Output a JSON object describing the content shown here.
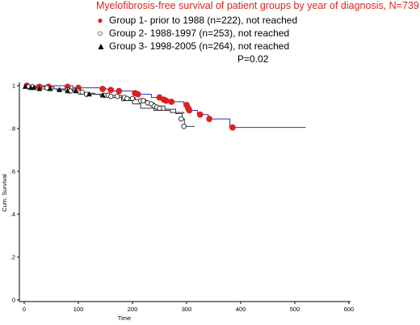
{
  "chart_data": {
    "type": "line",
    "title": "Myelofibrosis-free survival of patient groups by year of diagnosis, N=739",
    "xlabel": "Time",
    "ylabel": "Cum. Survival",
    "xlim": [
      0,
      600
    ],
    "ylim": [
      0,
      1
    ],
    "x_ticks": [
      "0",
      "100",
      "200",
      "300",
      "400",
      "500",
      "600"
    ],
    "y_ticks": [
      "0",
      ".2",
      ".4",
      ".6",
      ".8",
      "1"
    ],
    "legend": [
      {
        "marker": "filled-circle",
        "label": "Group 1- prior to 1988 (n=222), not reached"
      },
      {
        "marker": "open-circle",
        "label": "Group 2- 1988-1997 (n=253), not reached"
      },
      {
        "marker": "triangle",
        "label": "Group 3- 1998-2005 (n=264),  not reached"
      }
    ],
    "annotation": "P=0.02",
    "colors": {
      "title": "#d9261c",
      "group1_line": "#2a2ad4",
      "group1_marker": "#e0201c",
      "group2_line": "#333333",
      "group3_line": "#333333"
    },
    "series": [
      {
        "name": "Group 1- prior to 1988 (n=222), not reached",
        "line_color": "#2a2ad4",
        "marker": "filled-circle",
        "steps": [
          [
            0,
            1.0
          ],
          [
            90,
            0.99
          ],
          [
            140,
            0.985
          ],
          [
            165,
            0.975
          ],
          [
            200,
            0.96
          ],
          [
            235,
            0.945
          ],
          [
            250,
            0.935
          ],
          [
            270,
            0.925
          ],
          [
            295,
            0.915
          ],
          [
            300,
            0.895
          ],
          [
            302,
            0.885
          ],
          [
            320,
            0.865
          ],
          [
            340,
            0.845
          ],
          [
            380,
            0.805
          ],
          [
            520,
            0.805
          ]
        ],
        "censors": [
          [
            5,
            1.0
          ],
          [
            28,
            0.995
          ],
          [
            45,
            0.995
          ],
          [
            80,
            0.995
          ],
          [
            100,
            0.99
          ],
          [
            145,
            0.985
          ],
          [
            160,
            0.98
          ],
          [
            175,
            0.975
          ],
          [
            205,
            0.965
          ],
          [
            210,
            0.96
          ],
          [
            250,
            0.945
          ],
          [
            258,
            0.935
          ],
          [
            262,
            0.93
          ],
          [
            272,
            0.925
          ],
          [
            300,
            0.91
          ],
          [
            303,
            0.895
          ],
          [
            305,
            0.885
          ],
          [
            325,
            0.865
          ],
          [
            342,
            0.845
          ],
          [
            385,
            0.805
          ]
        ]
      },
      {
        "name": "Group 2- 1988-1997 (n=253), not reached",
        "line_color": "#333333",
        "marker": "open-circle",
        "steps": [
          [
            0,
            0.995
          ],
          [
            55,
            0.985
          ],
          [
            95,
            0.975
          ],
          [
            110,
            0.965
          ],
          [
            130,
            0.96
          ],
          [
            150,
            0.955
          ],
          [
            180,
            0.945
          ],
          [
            205,
            0.935
          ],
          [
            225,
            0.92
          ],
          [
            240,
            0.905
          ],
          [
            260,
            0.89
          ],
          [
            280,
            0.87
          ],
          [
            292,
            0.845
          ],
          [
            296,
            0.81
          ],
          [
            315,
            0.81
          ]
        ],
        "censors": [
          [
            8,
            0.995
          ],
          [
            15,
            0.995
          ],
          [
            42,
            0.99
          ],
          [
            80,
            0.98
          ],
          [
            85,
            0.975
          ],
          [
            100,
            0.975
          ],
          [
            103,
            0.97
          ],
          [
            107,
            0.97
          ],
          [
            115,
            0.96
          ],
          [
            148,
            0.955
          ],
          [
            155,
            0.955
          ],
          [
            160,
            0.95
          ],
          [
            172,
            0.95
          ],
          [
            185,
            0.945
          ],
          [
            190,
            0.94
          ],
          [
            200,
            0.94
          ],
          [
            215,
            0.93
          ],
          [
            220,
            0.93
          ],
          [
            228,
            0.92
          ],
          [
            235,
            0.915
          ],
          [
            240,
            0.905
          ],
          [
            245,
            0.9
          ],
          [
            250,
            0.895
          ],
          [
            290,
            0.845
          ],
          [
            295,
            0.81
          ]
        ]
      },
      {
        "name": "Group 3- 1998-2005 (n=264),  not reached",
        "line_color": "#333333",
        "marker": "triangle",
        "steps": [
          [
            0,
            0.995
          ],
          [
            10,
            0.99
          ],
          [
            30,
            0.985
          ],
          [
            60,
            0.98
          ],
          [
            90,
            0.975
          ],
          [
            105,
            0.965
          ],
          [
            120,
            0.96
          ],
          [
            140,
            0.955
          ],
          [
            160,
            0.945
          ],
          [
            180,
            0.93
          ],
          [
            200,
            0.915
          ],
          [
            215,
            0.895
          ],
          [
            240,
            0.885
          ],
          [
            270,
            0.875
          ],
          [
            295,
            0.87
          ]
        ],
        "censors": [
          [
            2,
            0.995
          ],
          [
            12,
            0.99
          ],
          [
            18,
            0.99
          ],
          [
            28,
            0.985
          ],
          [
            48,
            0.985
          ],
          [
            65,
            0.98
          ],
          [
            80,
            0.975
          ],
          [
            95,
            0.975
          ],
          [
            120,
            0.96
          ],
          [
            145,
            0.955
          ]
        ]
      }
    ]
  }
}
